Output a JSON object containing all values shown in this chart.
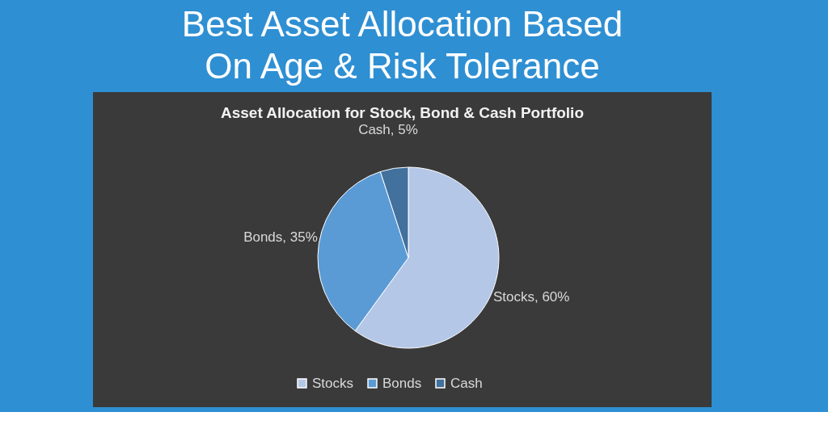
{
  "chart_data": {
    "type": "pie",
    "title": "Best Asset Allocation Based On Age & Risk Tolerance",
    "subtitle": "Asset Allocation for Stock, Bond & Cash Portfolio",
    "categories": [
      "Stocks",
      "Bonds",
      "Cash"
    ],
    "values": [
      60,
      35,
      5
    ],
    "colors": [
      "#b4c7e7",
      "#5b9bd5",
      "#41719c"
    ],
    "value_labels": [
      "Stocks, 60%",
      "Bonds, 35%",
      "Cash, 5%"
    ],
    "legend": "bottom"
  }
}
